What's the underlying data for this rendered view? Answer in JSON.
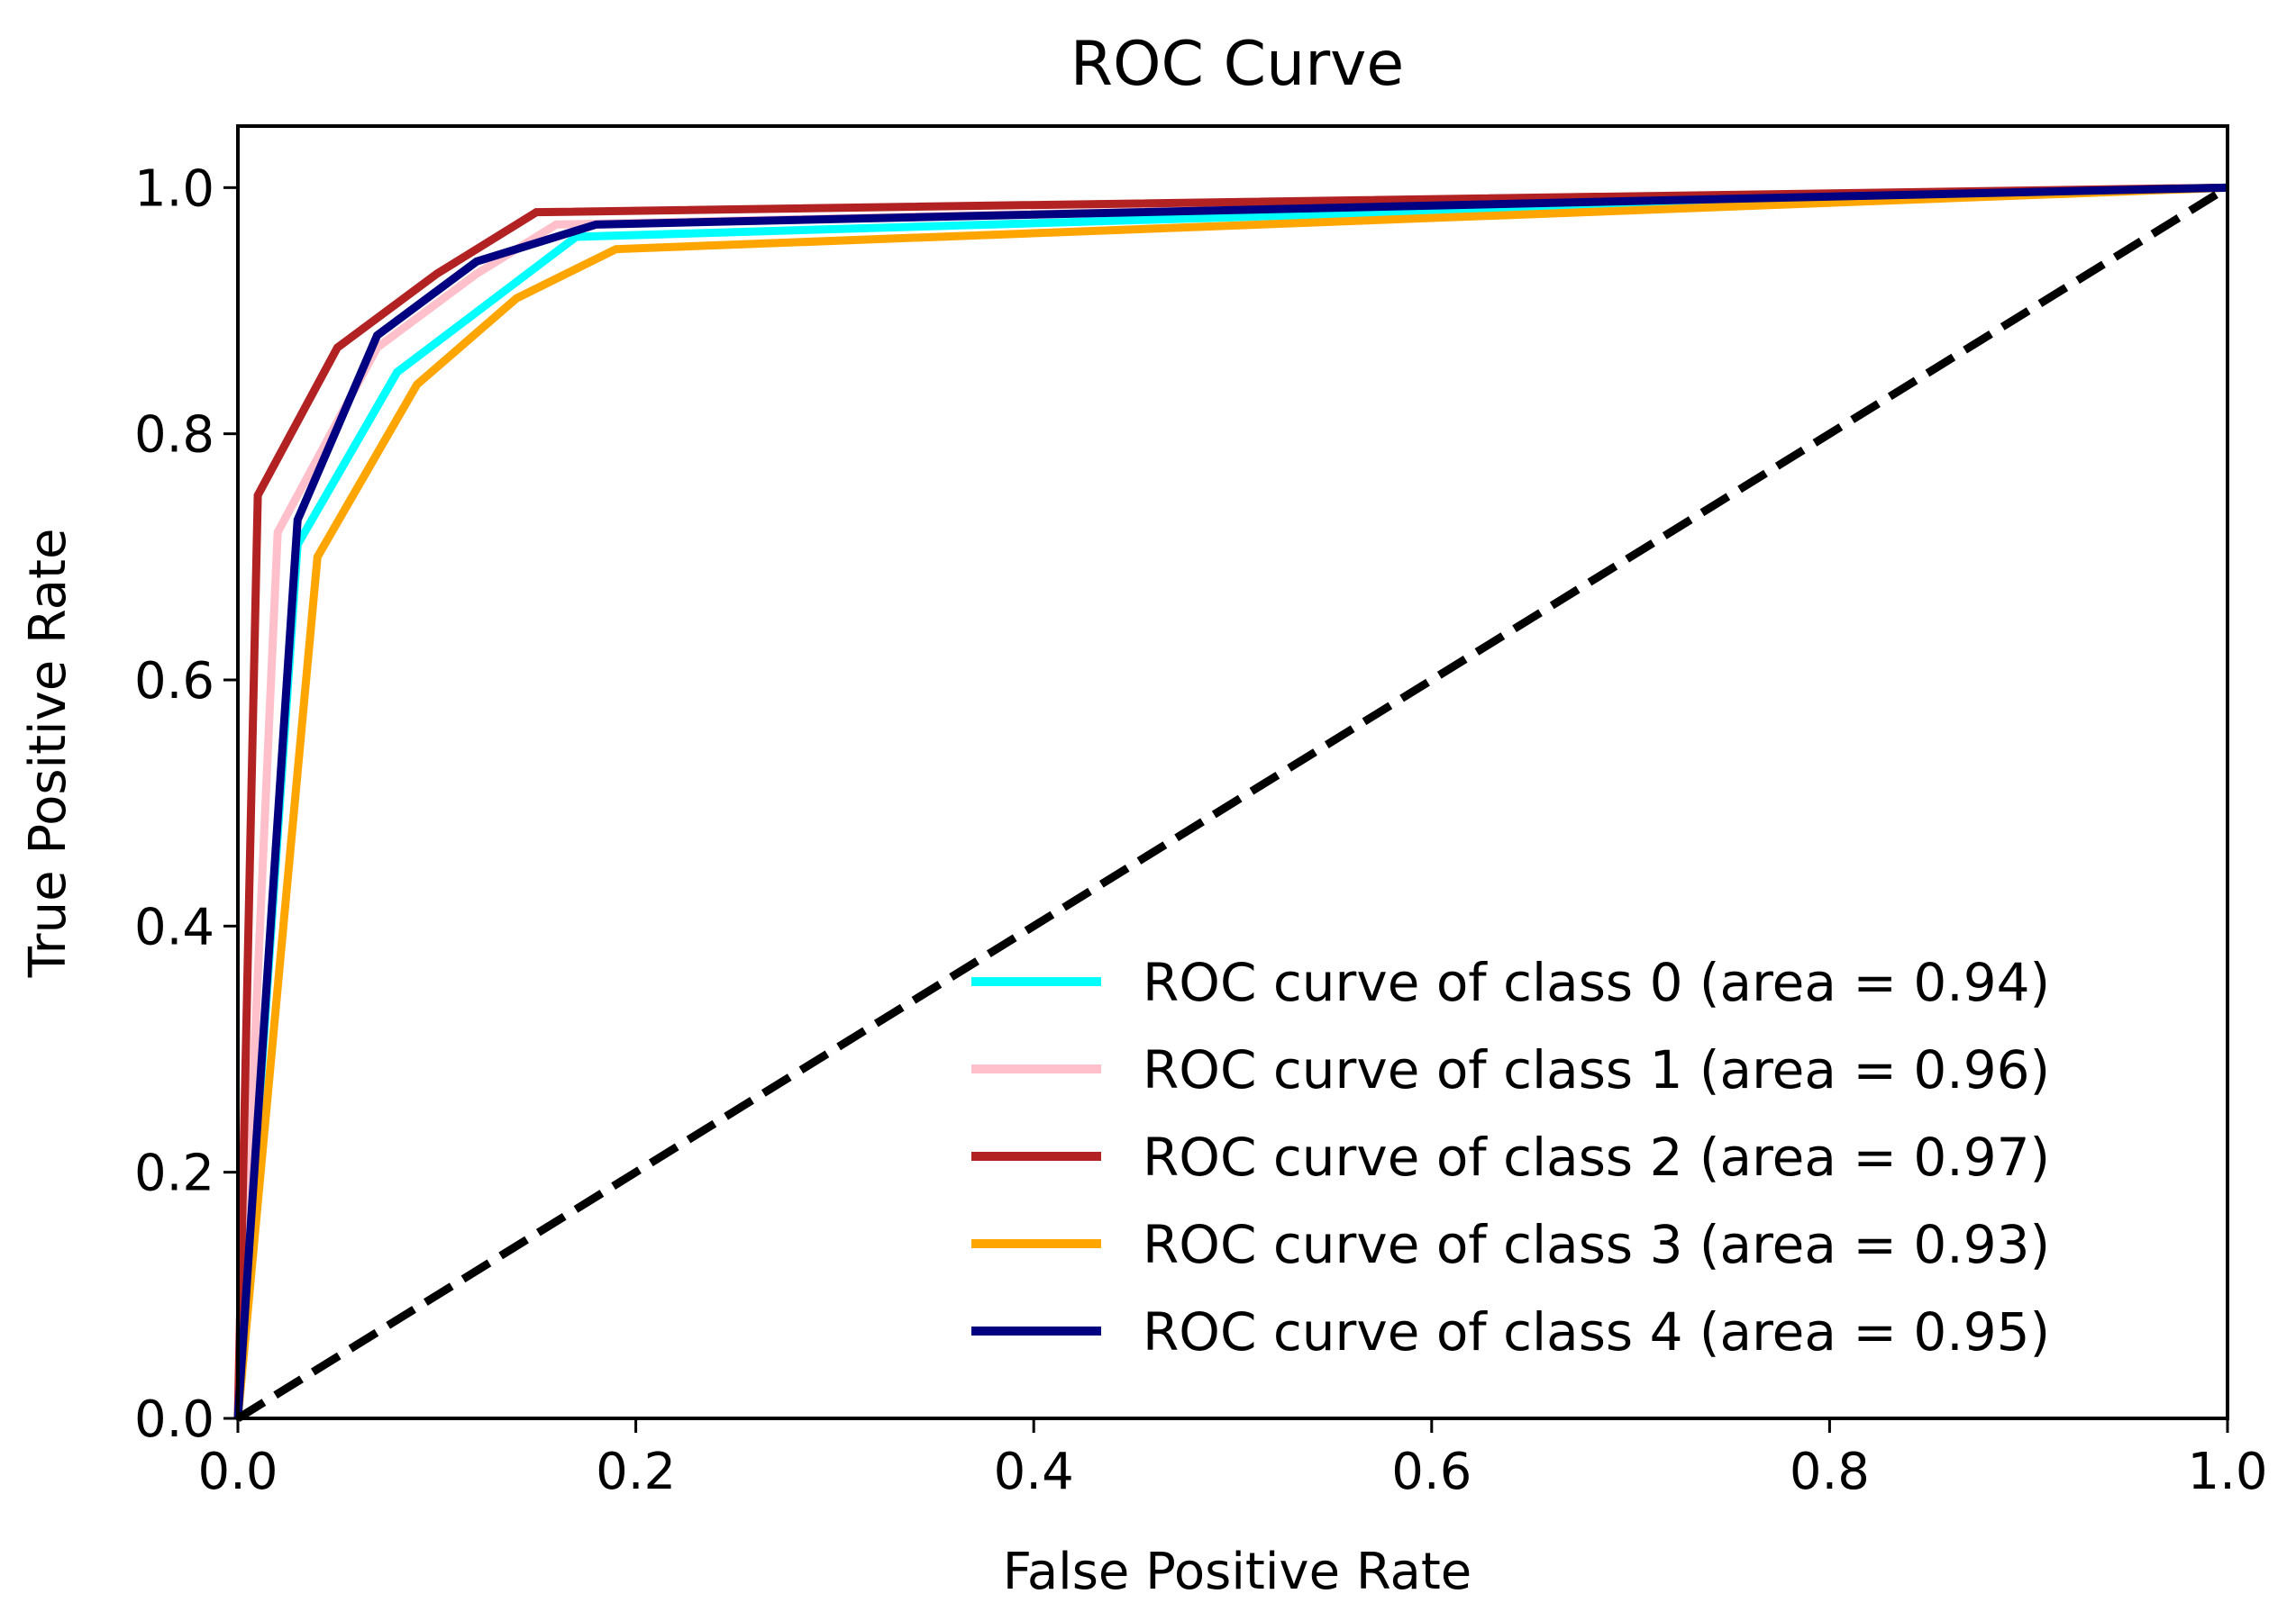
{
  "chart_data": {
    "type": "line",
    "title": "ROC Curve",
    "xlabel": "False Positive Rate",
    "ylabel": "True Positive Rate",
    "xlim": [
      0.0,
      1.0
    ],
    "ylim": [
      0.0,
      1.05
    ],
    "xticks": [
      "0.0",
      "0.2",
      "0.4",
      "0.6",
      "0.8",
      "1.0"
    ],
    "yticks": [
      "0.0",
      "0.2",
      "0.4",
      "0.6",
      "0.8",
      "1.0"
    ],
    "grid": false,
    "legend_position": "lower-right",
    "series": [
      {
        "name": "ROC curve of class 0 (area = 0.94)",
        "color": "#00ffff",
        "x": [
          0.0,
          0.03,
          0.08,
          0.17,
          1.0
        ],
        "y": [
          0.0,
          0.71,
          0.85,
          0.96,
          1.0
        ]
      },
      {
        "name": "ROC curve of class 1 (area = 0.96)",
        "color": "#ffc0cb",
        "x": [
          0.0,
          0.02,
          0.07,
          0.12,
          0.16,
          1.0
        ],
        "y": [
          0.0,
          0.72,
          0.87,
          0.93,
          0.97,
          1.0
        ]
      },
      {
        "name": "ROC curve of class 2 (area = 0.97)",
        "color": "#b22222",
        "x": [
          0.0,
          0.01,
          0.05,
          0.1,
          0.15,
          1.0
        ],
        "y": [
          0.0,
          0.75,
          0.87,
          0.93,
          0.98,
          1.0
        ]
      },
      {
        "name": "ROC curve of class 3 (area = 0.93)",
        "color": "#ffa500",
        "x": [
          0.0,
          0.04,
          0.09,
          0.14,
          0.19,
          1.0
        ],
        "y": [
          0.0,
          0.7,
          0.84,
          0.91,
          0.95,
          1.0
        ]
      },
      {
        "name": "ROC curve of class 4 (area = 0.95)",
        "color": "#000080",
        "x": [
          0.0,
          0.03,
          0.07,
          0.12,
          0.18,
          1.0
        ],
        "y": [
          0.0,
          0.73,
          0.88,
          0.94,
          0.97,
          1.0
        ]
      }
    ],
    "reference_line": {
      "style": "dashed",
      "color": "#000000",
      "x": [
        0.0,
        1.0
      ],
      "y": [
        0.0,
        1.0
      ]
    }
  }
}
